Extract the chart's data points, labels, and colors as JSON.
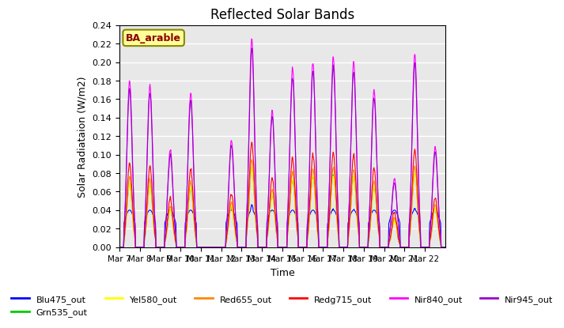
{
  "title": "Reflected Solar Bands",
  "xlabel": "Time",
  "ylabel": "Solar Radiataion (W/m2)",
  "ylim": [
    0,
    0.24
  ],
  "yticks": [
    0.0,
    0.02,
    0.04,
    0.06,
    0.08,
    0.1,
    0.12,
    0.14,
    0.16,
    0.18,
    0.2,
    0.22,
    0.24
  ],
  "xtick_labels": [
    "Mar 7",
    "Mar 8",
    "Mar 9",
    "Mar 10",
    "Mar 11",
    "Mar 12",
    "Mar 13",
    "Mar 14",
    "Mar 15",
    "Mar 16",
    "Mar 17",
    "Mar 18",
    "Mar 19",
    "Mar 20",
    "Mar 21",
    "Mar 22"
  ],
  "annotation_text": "BA_arable",
  "annotation_color": "#8B0000",
  "annotation_bg": "#FFFF99",
  "bg_color": "#E8E8E8",
  "day_peaks": [
    0.18,
    0.175,
    0.105,
    0.167,
    0.0,
    0.115,
    0.225,
    0.148,
    0.193,
    0.2,
    0.205,
    0.2,
    0.17,
    0.074,
    0.209,
    0.108
  ],
  "band_scales": [
    0.2,
    0.38,
    0.38,
    0.42,
    0.5,
    1.0,
    0.95
  ],
  "lines": [
    {
      "label": "Blu475_out",
      "color": "#0000FF"
    },
    {
      "label": "Grn535_out",
      "color": "#00CC00"
    },
    {
      "label": "Yel580_out",
      "color": "#FFFF00"
    },
    {
      "label": "Red655_out",
      "color": "#FF8800"
    },
    {
      "label": "Redg715_out",
      "color": "#FF0000"
    },
    {
      "label": "Nir840_out",
      "color": "#FF00FF"
    },
    {
      "label": "Nir945_out",
      "color": "#9900CC"
    }
  ]
}
